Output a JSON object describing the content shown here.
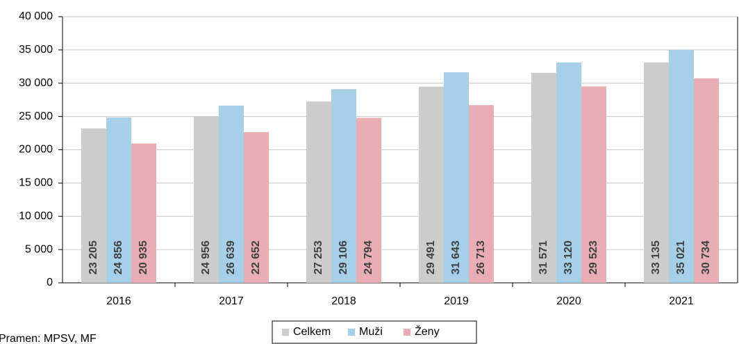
{
  "chart_data": {
    "type": "bar",
    "categories": [
      "2016",
      "2017",
      "2018",
      "2019",
      "2020",
      "2021"
    ],
    "series": [
      {
        "name": "Celkem",
        "color": "#cccccc",
        "values": [
          23205,
          24956,
          27253,
          29491,
          31571,
          33135
        ],
        "value_labels": [
          "23 205",
          "24 956",
          "27 253",
          "29 491",
          "31 571",
          "33 135"
        ]
      },
      {
        "name": "Muži",
        "color": "#a6cfe8",
        "values": [
          24856,
          26639,
          29106,
          31643,
          33120,
          35021
        ],
        "value_labels": [
          "24 856",
          "26 639",
          "29 106",
          "31 643",
          "33 120",
          "35 021"
        ]
      },
      {
        "name": "Ženy",
        "color": "#e8aeb3",
        "values": [
          20935,
          22652,
          24794,
          26713,
          29523,
          30734
        ],
        "value_labels": [
          "20 935",
          "22 652",
          "24 794",
          "26 713",
          "29 523",
          "30 734"
        ]
      }
    ],
    "ylim": [
      0,
      40000
    ],
    "yticks": [
      0,
      {
        "value": 5000,
        "label": "5 000"
      },
      {
        "value": 10000,
        "label": "10 000"
      },
      {
        "value": 15000,
        "label": "15 000"
      },
      {
        "value": 20000,
        "label": "20 000"
      },
      {
        "value": 25000,
        "label": "25 000"
      },
      {
        "value": 30000,
        "label": "30 000"
      },
      {
        "value": 35000,
        "label": "35 000"
      },
      {
        "value": 40000,
        "label": "40 000"
      }
    ],
    "grid": true,
    "legend": "bottom",
    "source": "Pramen: MPSV, MF"
  }
}
